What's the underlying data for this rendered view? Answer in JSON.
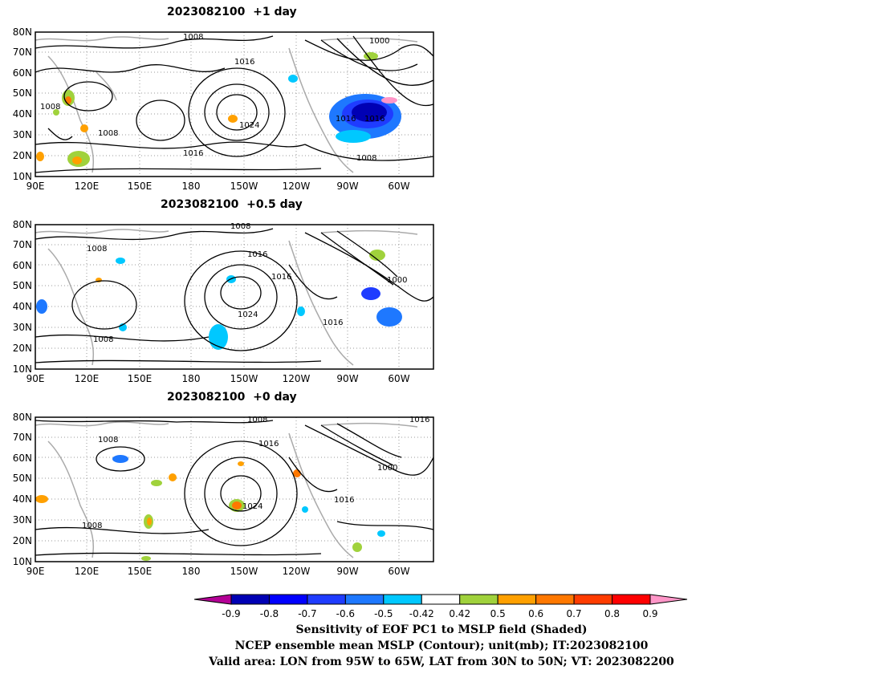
{
  "panels": [
    {
      "title": "2023082100  +1 day",
      "lat_ticks": [
        "80N",
        "70N",
        "60N",
        "50N",
        "40N",
        "30N",
        "20N",
        "10N"
      ],
      "lon_ticks": [
        "90E",
        "120E",
        "150E",
        "180",
        "150W",
        "120W",
        "90W",
        "60W"
      ],
      "isobar_labels": [
        "1008",
        "1000",
        "1016",
        "1008",
        "1008",
        "1024",
        "1016",
        "1016",
        "1016",
        "1008"
      ]
    },
    {
      "title": "2023082100  +0.5 day",
      "lat_ticks": [
        "80N",
        "70N",
        "60N",
        "50N",
        "40N",
        "30N",
        "20N",
        "10N"
      ],
      "lon_ticks": [
        "90E",
        "120E",
        "150E",
        "180",
        "150W",
        "120W",
        "90W",
        "60W"
      ],
      "isobar_labels": [
        "1008",
        "1008",
        "1016",
        "1016",
        "1000",
        "1024",
        "1016",
        "1008"
      ]
    },
    {
      "title": "2023082100  +0 day",
      "lat_ticks": [
        "80N",
        "70N",
        "60N",
        "50N",
        "40N",
        "30N",
        "20N",
        "10N"
      ],
      "lon_ticks": [
        "90E",
        "120E",
        "150E",
        "180",
        "150W",
        "120W",
        "90W",
        "60W"
      ],
      "isobar_labels": [
        "1008",
        "1016",
        "1008",
        "1016",
        "1000",
        "1024",
        "1016",
        "1008"
      ]
    }
  ],
  "colorbar": {
    "labels": [
      "-0.9",
      "-0.8",
      "-0.7",
      "-0.6",
      "-0.5",
      "-0.42",
      "0.42",
      "0.5",
      "0.6",
      "0.7",
      "0.8",
      "0.9"
    ],
    "colors": [
      "#0000b4",
      "#0000ff",
      "#1f3cff",
      "#1e78ff",
      "#00c8ff",
      "#ffffff",
      "#a0d23c",
      "#ffa000",
      "#ff7800",
      "#ff3c00",
      "#ff0000"
    ],
    "low_end_color": "#b40096",
    "high_end_color": "#ff96c8"
  },
  "caption": {
    "line1": "Sensitivity of EOF PC1 to MSLP field (Shaded)",
    "line2": "NCEP ensemble mean MSLP (Contour); unit(mb); IT:2023082100",
    "line3": "Valid area: LON from 95W to 65W, LAT from 30N to 50N; VT: 2023082200"
  }
}
